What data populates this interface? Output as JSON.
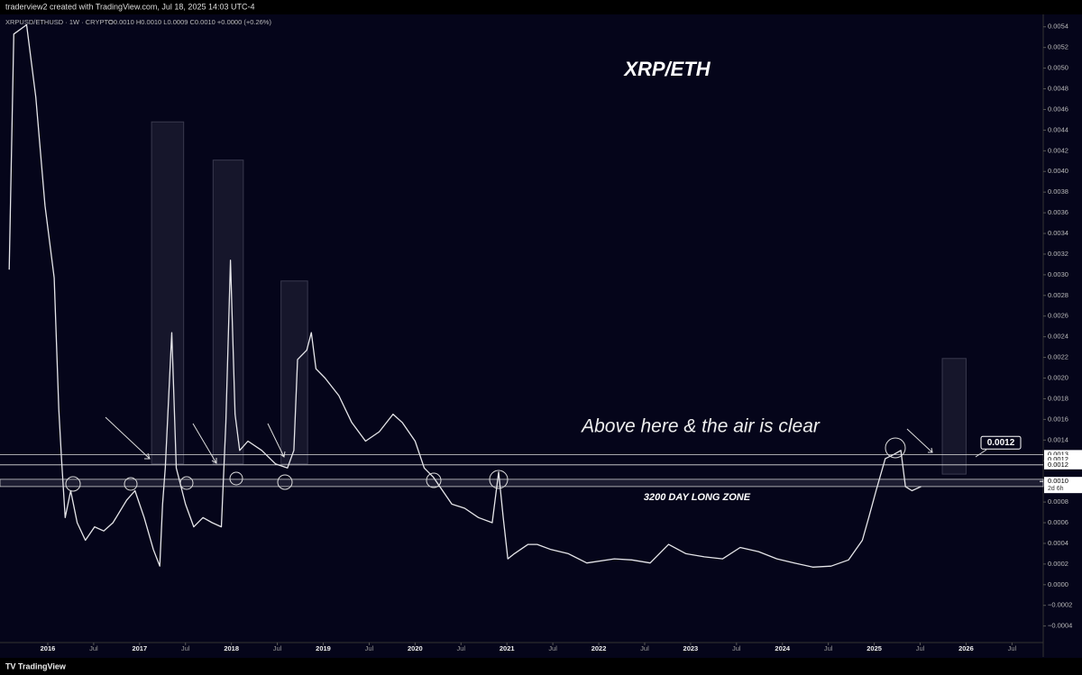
{
  "header": {
    "credit": "traderview2 created with TradingView.com, Jul 18, 2025 14:03 UTC-4",
    "symbol": "XRPUSD/ETHUSD · 1W · CRYPTO",
    "ohlc": "O0.0010 H0.0010 L0.0009 C0.0010 +0.0000 (+0.26%)"
  },
  "footer": {
    "brand": "TradingView"
  },
  "chart_data": {
    "type": "line",
    "title": "XRP/ETH",
    "annotations": [
      "Above here & the air is clear",
      "3200 DAY LONG ZONE"
    ],
    "series": [
      {
        "name": "XRPUSD/ETHUSD",
        "color": "#e6e6ea",
        "x": [
          2015.58,
          2015.63,
          2015.77,
          2015.87,
          2015.97,
          2016.07,
          2016.12,
          2016.15,
          2016.19,
          2016.25,
          2016.32,
          2016.41,
          2016.51,
          2016.61,
          2016.71,
          2016.86,
          2016.95,
          2017.05,
          2017.15,
          2017.22,
          2017.25,
          2017.28,
          2017.35,
          2017.4,
          2017.5,
          2017.59,
          2017.69,
          2017.79,
          2017.89,
          2017.94,
          2017.99,
          2018.04,
          2018.09,
          2018.18,
          2018.33,
          2018.48,
          2018.61,
          2018.68,
          2018.72,
          2018.82,
          2018.87,
          2018.92,
          2019.02,
          2019.17,
          2019.31,
          2019.46,
          2019.61,
          2019.76,
          2019.86,
          2020.0,
          2020.1,
          2020.2,
          2020.3,
          2020.4,
          2020.54,
          2020.69,
          2020.84,
          2020.91,
          2020.96,
          2021.01,
          2021.08,
          2021.23,
          2021.33,
          2021.48,
          2021.67,
          2021.87,
          2022.17,
          2022.36,
          2022.56,
          2022.76,
          2022.95,
          2023.15,
          2023.35,
          2023.54,
          2023.74,
          2023.94,
          2024.13,
          2024.33,
          2024.53,
          2024.72,
          2024.87,
          2024.94,
          2025.02,
          2025.12,
          2025.21,
          2025.29,
          2025.34,
          2025.41,
          2025.51
        ],
        "values": [
          0.00305,
          0.00533,
          0.00542,
          0.00472,
          0.00367,
          0.00297,
          0.0017,
          0.00122,
          0.00065,
          0.00091,
          0.0006,
          0.00043,
          0.00056,
          0.00052,
          0.0006,
          0.00082,
          0.00091,
          0.00065,
          0.00034,
          0.00018,
          0.00078,
          0.00113,
          0.00244,
          0.00113,
          0.00078,
          0.00056,
          0.00065,
          0.0006,
          0.00056,
          0.00157,
          0.00314,
          0.00165,
          0.0013,
          0.00139,
          0.0013,
          0.00117,
          0.00113,
          0.0013,
          0.00218,
          0.00227,
          0.00244,
          0.00209,
          0.002,
          0.00183,
          0.00157,
          0.00139,
          0.00148,
          0.00165,
          0.00157,
          0.00139,
          0.00113,
          0.00104,
          0.00091,
          0.00078,
          0.00074,
          0.00065,
          0.0006,
          0.00109,
          0.00065,
          0.00025,
          0.0003,
          0.00039,
          0.00039,
          0.00034,
          0.0003,
          0.00021,
          0.00025,
          0.00024,
          0.00021,
          0.00039,
          0.0003,
          0.00027,
          0.00025,
          0.00036,
          0.00032,
          0.00025,
          0.00021,
          0.00017,
          0.00018,
          0.00024,
          0.00043,
          0.00065,
          0.00091,
          0.00122,
          0.00126,
          0.0013,
          0.00095,
          0.00091,
          0.00095
        ]
      }
    ],
    "levels": [
      {
        "value": 0.00126,
        "label": "0.0013"
      },
      {
        "value": 0.00121,
        "label": "0.0012"
      },
      {
        "value": 0.00116,
        "label": "0.0012"
      }
    ],
    "zone": [
      0.00095,
      0.00102
    ],
    "last_price": {
      "value": 0.001,
      "label": "0.0010",
      "countdown": "2d 6h"
    },
    "callout": {
      "value": 0.0012,
      "label": "0.0012"
    },
    "highlight_boxes": [
      {
        "x": [
          2017.13,
          2017.48
        ],
        "y": [
          0.00117,
          0.00448
        ]
      },
      {
        "x": [
          2017.8,
          2018.13
        ],
        "y": [
          0.00117,
          0.00411
        ]
      },
      {
        "x": [
          2018.54,
          2018.83
        ],
        "y": [
          0.00117,
          0.00294
        ]
      },
      {
        "x": [
          2025.74,
          2026.0
        ],
        "y": [
          0.00107,
          0.00219
        ]
      }
    ],
    "xlim": [
      2015.48,
      2026.84
    ],
    "ylim": [
      -0.00056,
      0.00552
    ],
    "xticks": [
      2016,
      {
        "value": 2016.5,
        "label": "Jul"
      },
      2017,
      {
        "value": 2017.5,
        "label": "Jul"
      },
      2018,
      {
        "value": 2018.5,
        "label": "Jul"
      },
      2019,
      {
        "value": 2019.5,
        "label": "Jul"
      },
      2020,
      {
        "value": 2020.5,
        "label": "Jul"
      },
      2021,
      {
        "value": 2021.5,
        "label": "Jul"
      },
      2022,
      {
        "value": 2022.5,
        "label": "Jul"
      },
      2023,
      {
        "value": 2023.5,
        "label": "Jul"
      },
      2024,
      {
        "value": 2024.5,
        "label": "Jul"
      },
      2025,
      {
        "value": 2025.5,
        "label": "Jul"
      },
      2026,
      {
        "value": 2026.5,
        "label": "Jul"
      }
    ],
    "yticks": [
      {
        "value": -0.0004,
        "label": "−0.0004"
      },
      {
        "value": -0.0002,
        "label": "−0.0002"
      },
      {
        "value": 0,
        "label": "0.0000"
      },
      {
        "value": 0.0002,
        "label": "0.0002"
      },
      {
        "value": 0.0004,
        "label": "0.0004"
      },
      {
        "value": 0.0006,
        "label": "0.0006"
      },
      {
        "value": 0.0008,
        "label": "0.0008"
      },
      {
        "value": 0.001,
        "label": "0.0010"
      },
      {
        "value": 0.0012,
        "label": "0.0012"
      },
      {
        "value": 0.0014,
        "label": "0.0014"
      },
      {
        "value": 0.0016,
        "label": "0.0016"
      },
      {
        "value": 0.0018,
        "label": "0.0018"
      },
      {
        "value": 0.002,
        "label": "0.0020"
      },
      {
        "value": 0.0022,
        "label": "0.0022"
      },
      {
        "value": 0.0024,
        "label": "0.0024"
      },
      {
        "value": 0.0026,
        "label": "0.0026"
      },
      {
        "value": 0.0028,
        "label": "0.0028"
      },
      {
        "value": 0.003,
        "label": "0.0030"
      },
      {
        "value": 0.0032,
        "label": "0.0032"
      },
      {
        "value": 0.0034,
        "label": "0.0034"
      },
      {
        "value": 0.0036,
        "label": "0.0036"
      },
      {
        "value": 0.0038,
        "label": "0.0038"
      },
      {
        "value": 0.004,
        "label": "0.0040"
      },
      {
        "value": 0.0042,
        "label": "0.0042"
      },
      {
        "value": 0.0044,
        "label": "0.0044"
      },
      {
        "value": 0.0046,
        "label": "0.0046"
      },
      {
        "value": 0.0048,
        "label": "0.0048"
      },
      {
        "value": 0.005,
        "label": "0.0050"
      },
      {
        "value": 0.0052,
        "label": "0.0052"
      },
      {
        "value": 0.0054,
        "label": "0.0054"
      }
    ]
  }
}
